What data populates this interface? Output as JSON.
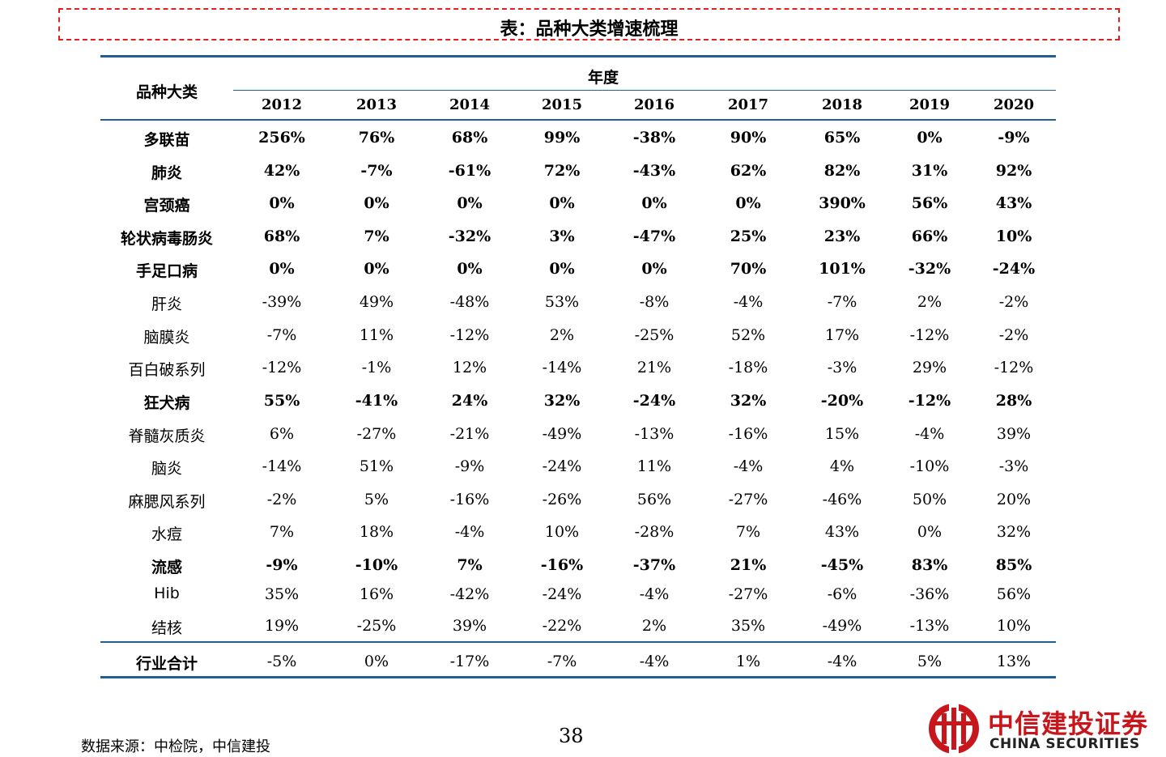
{
  "title": "表：品种大类增速梳理",
  "table": {
    "category_header": "品种大类",
    "year_group_header": "年度",
    "years": [
      "2012",
      "2013",
      "2014",
      "2015",
      "2016",
      "2017",
      "2018",
      "2019",
      "2020"
    ],
    "rows": [
      {
        "name": "多联苗",
        "bold": true,
        "values": [
          "256%",
          "76%",
          "68%",
          "99%",
          "-38%",
          "90%",
          "65%",
          "0%",
          "-9%"
        ]
      },
      {
        "name": "肺炎",
        "bold": true,
        "values": [
          "42%",
          "-7%",
          "-61%",
          "72%",
          "-43%",
          "62%",
          "82%",
          "31%",
          "92%"
        ]
      },
      {
        "name": "宫颈癌",
        "bold": true,
        "values": [
          "0%",
          "0%",
          "0%",
          "0%",
          "0%",
          "0%",
          "390%",
          "56%",
          "43%"
        ]
      },
      {
        "name": "轮状病毒肠炎",
        "bold": true,
        "values": [
          "68%",
          "7%",
          "-32%",
          "3%",
          "-47%",
          "25%",
          "23%",
          "66%",
          "10%"
        ]
      },
      {
        "name": "手足口病",
        "bold": true,
        "values": [
          "0%",
          "0%",
          "0%",
          "0%",
          "0%",
          "70%",
          "101%",
          "-32%",
          "-24%"
        ]
      },
      {
        "name": "肝炎",
        "bold": false,
        "values": [
          "-39%",
          "49%",
          "-48%",
          "53%",
          "-8%",
          "-4%",
          "-7%",
          "2%",
          "-2%"
        ]
      },
      {
        "name": "脑膜炎",
        "bold": false,
        "values": [
          "-7%",
          "11%",
          "-12%",
          "2%",
          "-25%",
          "52%",
          "17%",
          "-12%",
          "-2%"
        ]
      },
      {
        "name": "百白破系列",
        "bold": false,
        "values": [
          "-12%",
          "-1%",
          "12%",
          "-14%",
          "21%",
          "-18%",
          "-3%",
          "29%",
          "-12%"
        ]
      },
      {
        "name": "狂犬病",
        "bold": true,
        "values": [
          "55%",
          "-41%",
          "24%",
          "32%",
          "-24%",
          "32%",
          "-20%",
          "-12%",
          "28%"
        ]
      },
      {
        "name": "脊髓灰质炎",
        "bold": false,
        "values": [
          "6%",
          "-27%",
          "-21%",
          "-49%",
          "-13%",
          "-16%",
          "15%",
          "-4%",
          "39%"
        ]
      },
      {
        "name": "脑炎",
        "bold": false,
        "values": [
          "-14%",
          "51%",
          "-9%",
          "-24%",
          "11%",
          "-4%",
          "4%",
          "-10%",
          "-3%"
        ]
      },
      {
        "name": "麻腮风系列",
        "bold": false,
        "values": [
          "-2%",
          "5%",
          "-16%",
          "-26%",
          "56%",
          "-27%",
          "-46%",
          "50%",
          "20%"
        ]
      },
      {
        "name": "水痘",
        "bold": false,
        "values": [
          "7%",
          "18%",
          "-4%",
          "10%",
          "-28%",
          "7%",
          "43%",
          "0%",
          "32%"
        ]
      },
      {
        "name": "流感",
        "bold": true,
        "values": [
          "-9%",
          "-10%",
          "7%",
          "-16%",
          "-37%",
          "21%",
          "-45%",
          "83%",
          "85%"
        ]
      },
      {
        "name": "Hib",
        "bold": false,
        "values": [
          "35%",
          "16%",
          "-42%",
          "-24%",
          "-4%",
          "-27%",
          "-6%",
          "-36%",
          "56%"
        ]
      },
      {
        "name": "结核",
        "bold": false,
        "values": [
          "19%",
          "-25%",
          "39%",
          "-22%",
          "2%",
          "35%",
          "-49%",
          "-13%",
          "10%"
        ]
      }
    ],
    "total": {
      "name": "行业合计",
      "values": [
        "-5%",
        "0%",
        "-17%",
        "-7%",
        "-4%",
        "1%",
        "-4%",
        "5%",
        "13%"
      ]
    }
  },
  "footer": {
    "source": "数据来源：中检院，中信建投",
    "page_number": "38",
    "brand_cn": "中信建投证券",
    "brand_en": "CHINA SECURITIES",
    "brand_color": "#c8161d"
  }
}
